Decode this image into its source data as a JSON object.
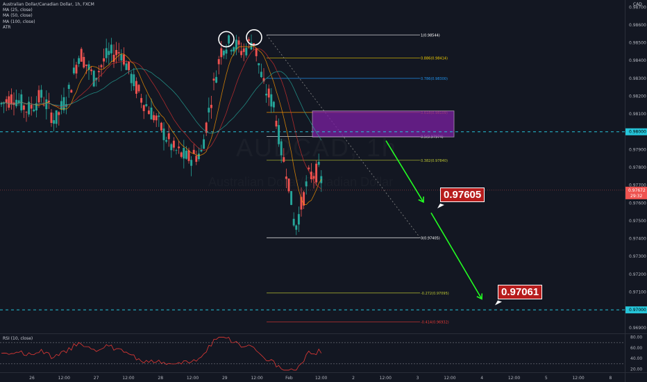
{
  "legend": {
    "title": "Australian Dollar/Canadian Dollar, 1h, FXCM",
    "ma25": "MA (25, close)",
    "ma50": "MA (50, close)",
    "ma100": "MA (100, close)",
    "atr": "ATR"
  },
  "watermark": {
    "symbol": "AUDCAD, 1h",
    "name": "Australian Dollar/Canadian Dollar"
  },
  "currency": "CAD",
  "rsi_label": "RSI (10, close)",
  "callouts": {
    "first": "0.97605",
    "second": "0.97061"
  },
  "colors": {
    "background": "#131722",
    "up": "#26a69a",
    "down": "#ef5350",
    "zone": "#7b1fa2",
    "arrow": "#22ff22",
    "callout": "#b71c1c",
    "dashed_level": "#26c6da",
    "rsi": "#e53935"
  },
  "chart_data": {
    "type": "candlestick",
    "symbol": "AUDCAD",
    "timeframe": "1h",
    "price_axis": {
      "ticks": [
        "0.98700",
        "0.98600",
        "0.98500",
        "0.98400",
        "0.98300",
        "0.98200",
        "0.98100",
        "0.98000",
        "0.97900",
        "0.97800",
        "0.97700",
        "0.97600",
        "0.97500",
        "0.97400",
        "0.97300",
        "0.97200",
        "0.97100",
        "0.97000",
        "0.96900"
      ],
      "range": [
        0.96868,
        0.9874
      ]
    },
    "current_price": "0.97672",
    "countdown": "29:32",
    "highlighted_levels": [
      "0.98000",
      "0.97000"
    ],
    "time_axis": [
      "26",
      "12:00",
      "27",
      "12:00",
      "28",
      "12:00",
      "29",
      "12:00",
      "Feb",
      "12:00",
      "2",
      "12:00",
      "3",
      "12:00",
      "4",
      "12:00",
      "5",
      "12:00",
      "8"
    ],
    "fibonacci": [
      {
        "label": "1(0.98544)",
        "value": 0.98544
      },
      {
        "label": "0.886(0.98414)",
        "value": 0.98414
      },
      {
        "label": "0.786(0.98300)",
        "value": 0.983
      },
      {
        "label": "0.618(0.98109)",
        "value": 0.98109
      },
      {
        "label": "0.5(0.97974)",
        "value": 0.97974
      },
      {
        "label": "0.382(0.97840)",
        "value": 0.9784
      },
      {
        "label": "0(0.97405)",
        "value": 0.97405
      },
      {
        "label": "-0.272(0.97095)",
        "value": 0.97095
      },
      {
        "label": "-0.414(0.96932)",
        "value": 0.96932
      }
    ],
    "supply_zone": {
      "top": 0.98117,
      "bottom": 0.97971
    },
    "projection_targets": [
      0.97605,
      0.97061
    ],
    "double_top": [
      0.985,
      0.9852
    ],
    "rsi": {
      "ticks": [
        "80.00",
        "60.00",
        "40.00",
        "20.00"
      ],
      "range": [
        14,
        86
      ],
      "levels": [
        70,
        30
      ]
    }
  }
}
